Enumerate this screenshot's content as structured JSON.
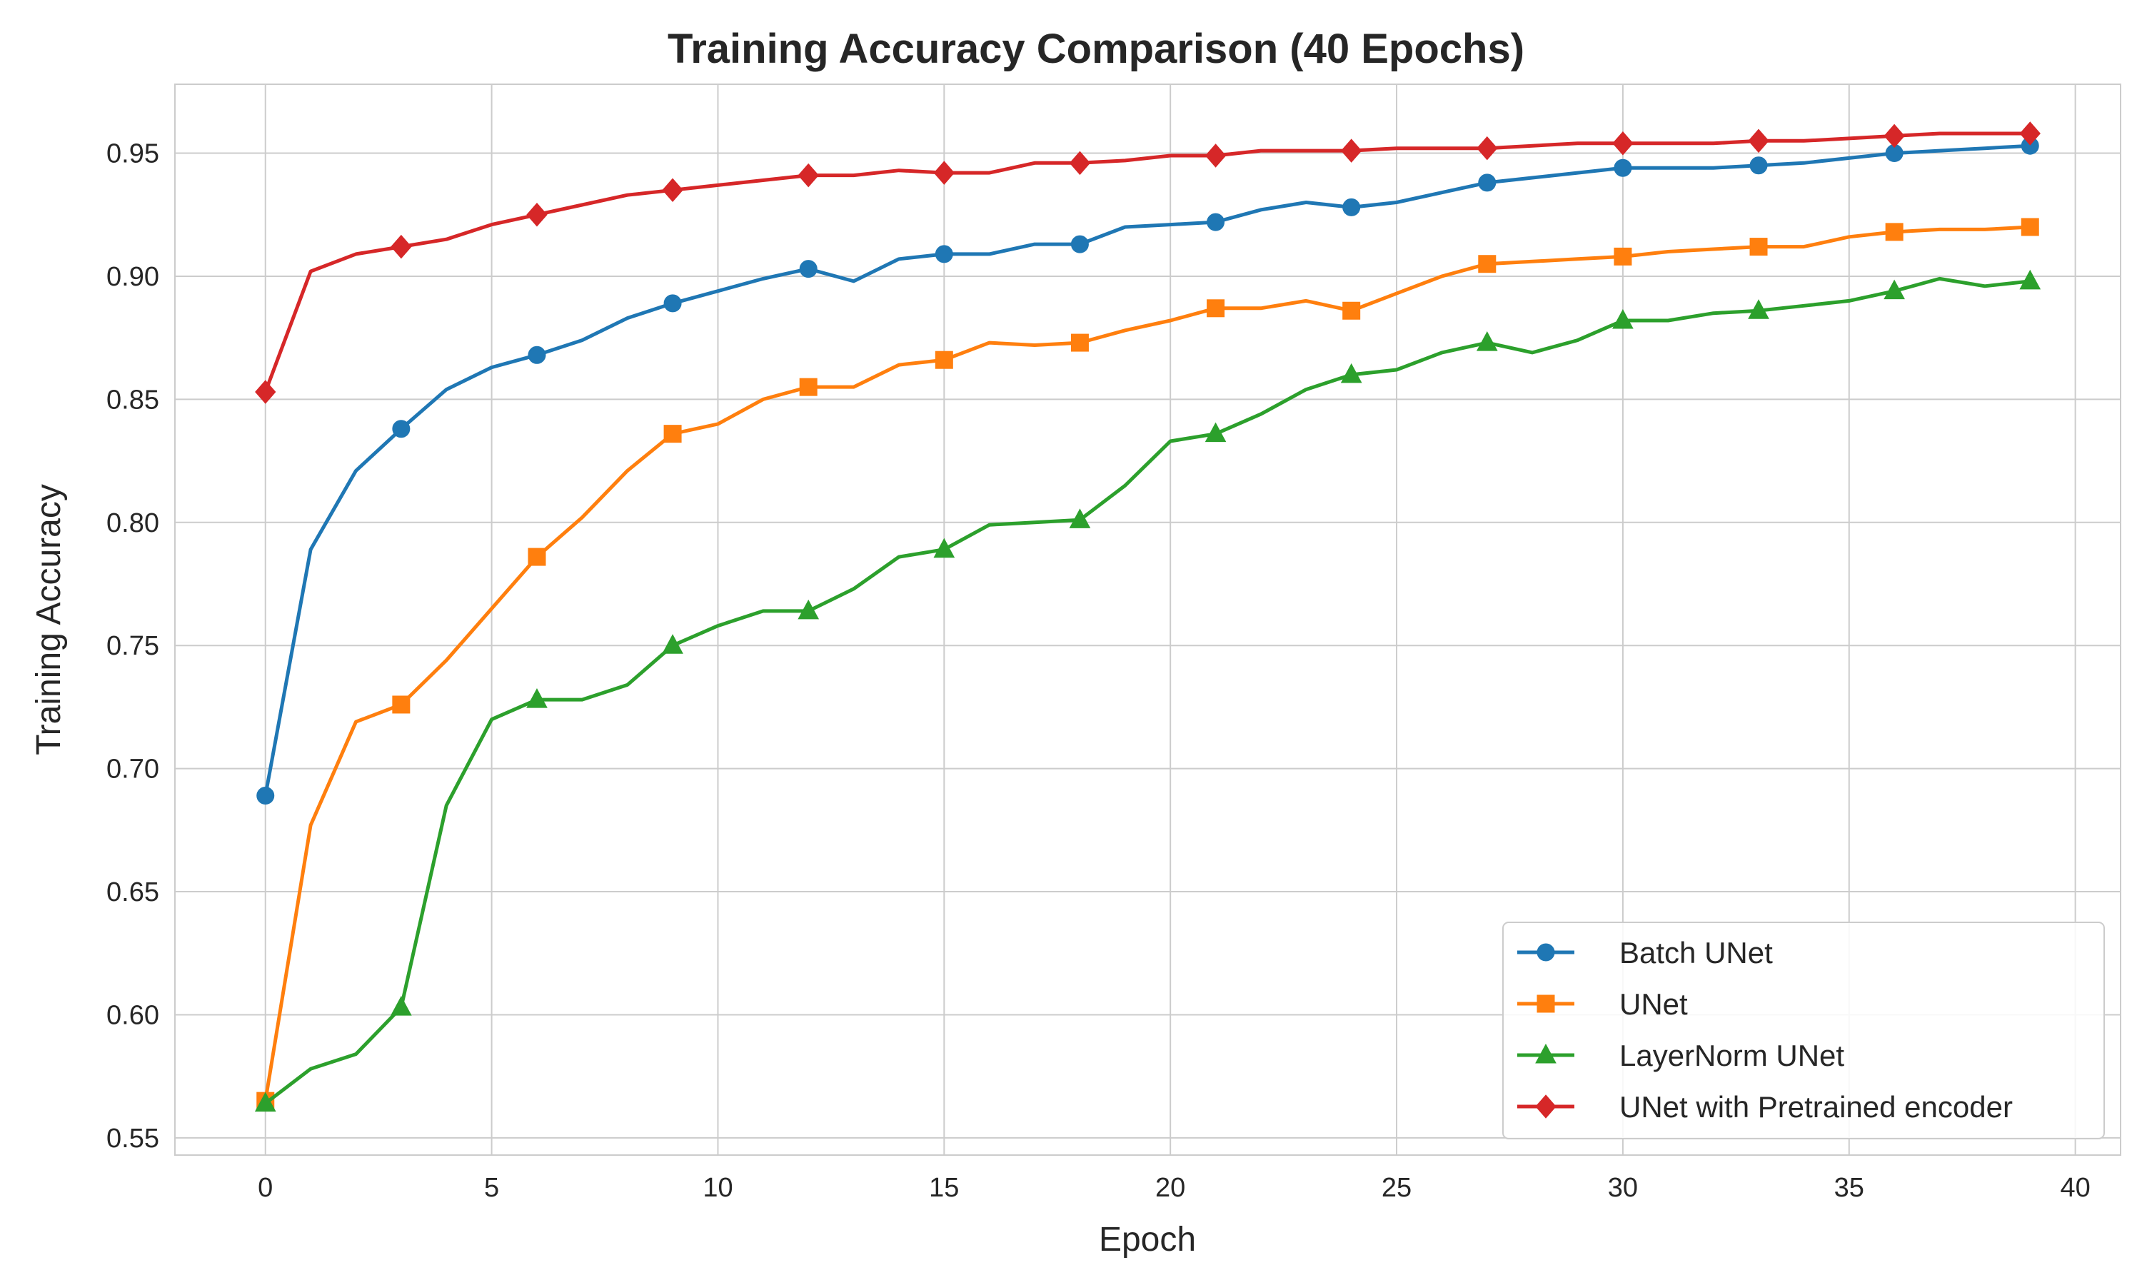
{
  "chart_data": {
    "type": "line",
    "title": "Training Accuracy Comparison (40 Epochs)",
    "xlabel": "Epoch",
    "ylabel": "Training Accuracy",
    "xlim": [
      -2,
      41
    ],
    "ylim": [
      0.543,
      0.978
    ],
    "x_ticks": [
      0,
      5,
      10,
      15,
      20,
      25,
      30,
      35,
      40
    ],
    "x_tick_labels": [
      "0",
      "5",
      "10",
      "15",
      "20",
      "25",
      "30",
      "35",
      "40"
    ],
    "y_ticks": [
      0.55,
      0.6,
      0.65,
      0.7,
      0.75,
      0.8,
      0.85,
      0.9,
      0.95
    ],
    "y_tick_labels": [
      "0.55",
      "0.60",
      "0.65",
      "0.70",
      "0.75",
      "0.80",
      "0.85",
      "0.90",
      "0.95"
    ],
    "grid": true,
    "legend_position": "lower-right",
    "marker_every": 3,
    "x": [
      0,
      1,
      2,
      3,
      4,
      5,
      6,
      7,
      8,
      9,
      10,
      11,
      12,
      13,
      14,
      15,
      16,
      17,
      18,
      19,
      20,
      21,
      22,
      23,
      24,
      25,
      26,
      27,
      28,
      29,
      30,
      31,
      32,
      33,
      34,
      35,
      36,
      37,
      38,
      39
    ],
    "series": [
      {
        "name": "Batch UNet",
        "color": "#1f77b4",
        "marker": "circle",
        "values": [
          0.689,
          0.789,
          0.821,
          0.838,
          0.854,
          0.863,
          0.868,
          0.874,
          0.883,
          0.889,
          0.894,
          0.899,
          0.903,
          0.898,
          0.907,
          0.909,
          0.909,
          0.913,
          0.913,
          0.92,
          0.921,
          0.922,
          0.927,
          0.93,
          0.928,
          0.93,
          0.934,
          0.938,
          0.94,
          0.942,
          0.944,
          0.944,
          0.944,
          0.945,
          0.946,
          0.948,
          0.95,
          0.951,
          0.952,
          0.953
        ]
      },
      {
        "name": "UNet",
        "color": "#ff7f0e",
        "marker": "square",
        "values": [
          0.565,
          0.677,
          0.719,
          0.726,
          0.744,
          0.765,
          0.786,
          0.802,
          0.821,
          0.836,
          0.84,
          0.85,
          0.855,
          0.855,
          0.864,
          0.866,
          0.873,
          0.872,
          0.873,
          0.878,
          0.882,
          0.887,
          0.887,
          0.89,
          0.886,
          0.893,
          0.9,
          0.905,
          0.906,
          0.907,
          0.908,
          0.91,
          0.911,
          0.912,
          0.912,
          0.916,
          0.918,
          0.919,
          0.919,
          0.92
        ]
      },
      {
        "name": "LayerNorm UNet",
        "color": "#2ca02c",
        "marker": "triangle",
        "values": [
          0.564,
          0.578,
          0.584,
          0.603,
          0.685,
          0.72,
          0.728,
          0.728,
          0.734,
          0.75,
          0.758,
          0.764,
          0.764,
          0.773,
          0.786,
          0.789,
          0.799,
          0.8,
          0.801,
          0.815,
          0.833,
          0.836,
          0.844,
          0.854,
          0.86,
          0.862,
          0.869,
          0.873,
          0.869,
          0.874,
          0.882,
          0.882,
          0.885,
          0.886,
          0.888,
          0.89,
          0.894,
          0.899,
          0.896,
          0.898
        ]
      },
      {
        "name": "UNet with Pretrained encoder",
        "color": "#d62728",
        "marker": "diamond",
        "values": [
          0.853,
          0.902,
          0.909,
          0.912,
          0.915,
          0.921,
          0.925,
          0.929,
          0.933,
          0.935,
          0.937,
          0.939,
          0.941,
          0.941,
          0.943,
          0.942,
          0.942,
          0.946,
          0.946,
          0.947,
          0.949,
          0.949,
          0.951,
          0.951,
          0.951,
          0.952,
          0.952,
          0.952,
          0.953,
          0.954,
          0.954,
          0.954,
          0.954,
          0.955,
          0.955,
          0.956,
          0.957,
          0.958,
          0.958,
          0.958
        ]
      }
    ]
  }
}
